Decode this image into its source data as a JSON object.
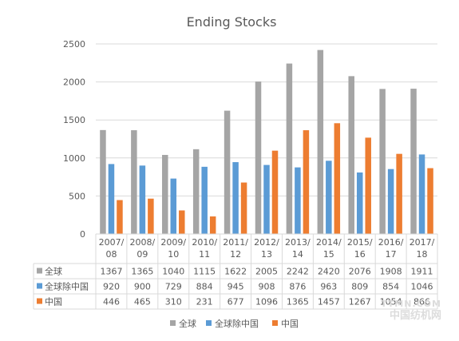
{
  "chart_data": {
    "type": "bar",
    "title": "Ending Stocks",
    "categories": [
      "2007/08",
      "2008/09",
      "2009/10",
      "2010/11",
      "2011/12",
      "2012/13",
      "2013/14",
      "2014/15",
      "2015/16",
      "2016/17",
      "2017/18"
    ],
    "category_lines": [
      [
        "2007/",
        "08"
      ],
      [
        "2008/",
        "09"
      ],
      [
        "2009/",
        "10"
      ],
      [
        "2010/",
        "11"
      ],
      [
        "2011/",
        "12"
      ],
      [
        "2012/",
        "13"
      ],
      [
        "2013/",
        "14"
      ],
      [
        "2014/",
        "15"
      ],
      [
        "2015/",
        "16"
      ],
      [
        "2016/",
        "17"
      ],
      [
        "2017/",
        "18"
      ]
    ],
    "series": [
      {
        "name": "全球",
        "color": "#a5a5a5",
        "values": [
          1367,
          1365,
          1040,
          1115,
          1622,
          2005,
          2242,
          2420,
          2076,
          1908,
          1911
        ]
      },
      {
        "name": "全球除中国",
        "color": "#5b9bd5",
        "values": [
          920,
          900,
          729,
          884,
          945,
          908,
          876,
          963,
          809,
          854,
          1046
        ]
      },
      {
        "name": "中国",
        "color": "#ed7d31",
        "values": [
          446,
          465,
          310,
          231,
          677,
          1096,
          1365,
          1457,
          1267,
          1054,
          866
        ]
      }
    ],
    "ylim": [
      0,
      2500
    ],
    "yticks": [
      0,
      500,
      1000,
      1500,
      2000,
      2500
    ],
    "grid": true,
    "legend": "bottom",
    "data_table": true
  },
  "watermark": {
    "line1": "TTMN.COM",
    "line2": "中国纺机网"
  }
}
